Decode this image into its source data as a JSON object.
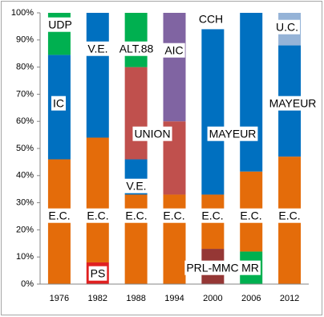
{
  "chart_data": {
    "type": "stacked_bar",
    "categories": [
      "1976",
      "1982",
      "1988",
      "1994",
      "2000",
      "2006",
      "2012"
    ],
    "ylim": [
      0,
      100
    ],
    "yticks": [
      {
        "value": 0,
        "label": "0%"
      },
      {
        "value": 10,
        "label": "10%"
      },
      {
        "value": 20,
        "label": "20%"
      },
      {
        "value": 30,
        "label": "30%"
      },
      {
        "value": 40,
        "label": "40%"
      },
      {
        "value": 50,
        "label": "50%"
      },
      {
        "value": 60,
        "label": "60%"
      },
      {
        "value": 70,
        "label": "70%"
      },
      {
        "value": 80,
        "label": "80%"
      },
      {
        "value": 90,
        "label": "90%"
      },
      {
        "value": 100,
        "label": "100%"
      }
    ],
    "series": [
      {
        "name": "PS",
        "color": "#e02020",
        "values": [
          null,
          8,
          null,
          null,
          null,
          null,
          null
        ]
      },
      {
        "name": "PRL-MMC",
        "color": "#953735",
        "values": [
          null,
          null,
          null,
          null,
          13,
          null,
          null
        ]
      },
      {
        "name": "MR",
        "color": "#00b050",
        "values": [
          null,
          null,
          null,
          null,
          null,
          12,
          null
        ]
      },
      {
        "name": "E.C.",
        "color": "#e46c0a",
        "values": [
          46,
          46,
          33,
          33,
          20,
          29.5,
          47
        ]
      },
      {
        "name": "IC",
        "color": "#0070c0",
        "values": [
          38.5,
          null,
          null,
          null,
          null,
          null,
          null
        ]
      },
      {
        "name": "V.E.",
        "color": "#0070c0",
        "values": [
          null,
          46,
          13,
          null,
          null,
          null,
          null
        ]
      },
      {
        "name": "MAYEUR",
        "color": "#0070c0",
        "values": [
          null,
          null,
          null,
          null,
          61,
          58.5,
          41
        ]
      },
      {
        "name": "UNION",
        "color": "#c0504d",
        "values": [
          null,
          null,
          34,
          27,
          null,
          null,
          null
        ]
      },
      {
        "name": "UDP",
        "color": "#00b050",
        "values": [
          15.5,
          null,
          null,
          null,
          null,
          null,
          null
        ]
      },
      {
        "name": "ALT.88",
        "color": "#00b050",
        "values": [
          null,
          null,
          20,
          null,
          null,
          null,
          null
        ]
      },
      {
        "name": "AIC",
        "color": "#8064a2",
        "values": [
          null,
          null,
          null,
          40,
          null,
          null,
          null
        ]
      },
      {
        "name": "CCH",
        "color": "#ffffff",
        "values": [
          null,
          null,
          null,
          null,
          6,
          null,
          null
        ]
      },
      {
        "name": "U.C.",
        "color": "#95b3d7",
        "values": [
          null,
          null,
          null,
          null,
          null,
          null,
          12
        ]
      }
    ]
  }
}
